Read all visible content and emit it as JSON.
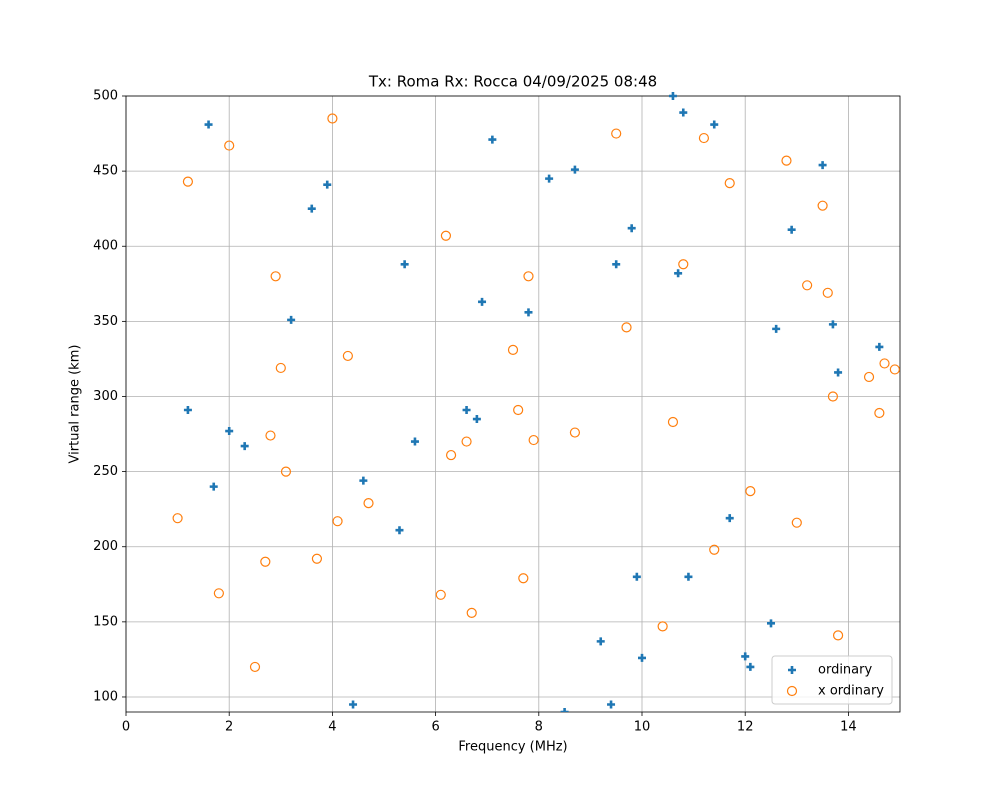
{
  "chart_data": {
    "type": "scatter",
    "title": "Tx: Roma Rx: Rocca 04/09/2025 08:48",
    "x_label": "Frequency (MHz)",
    "y_label": "Virtual range (km)",
    "xlim": [
      0,
      15
    ],
    "ylim": [
      90,
      500
    ],
    "xticks": [
      0,
      2,
      4,
      6,
      8,
      10,
      12,
      14
    ],
    "yticks": [
      100,
      150,
      200,
      250,
      300,
      350,
      400,
      450,
      500
    ],
    "grid": true,
    "legend": "lower right",
    "series": [
      {
        "name": "ordinary",
        "color": "#1f77b4",
        "marker": "plus",
        "x": [
          1.6,
          1.2,
          2.0,
          1.7,
          2.3,
          3.2,
          3.6,
          3.9,
          4.4,
          4.6,
          5.3,
          5.4,
          5.6,
          6.6,
          6.8,
          6.9,
          7.1,
          7.8,
          8.2,
          8.5,
          8.7,
          9.2,
          9.4,
          9.5,
          9.8,
          9.9,
          10.0,
          10.6,
          10.7,
          10.8,
          10.9,
          11.4,
          11.7,
          12.0,
          12.1,
          12.5,
          12.6,
          12.9,
          13.5,
          13.7,
          13.8,
          14.6
        ],
        "values": [
          481,
          291,
          277,
          240,
          267,
          351,
          425,
          441,
          95,
          244,
          211,
          388,
          270,
          291,
          285,
          363,
          471,
          356,
          445,
          90,
          451,
          137,
          95,
          388,
          412,
          180,
          126,
          500,
          382,
          489,
          180,
          481,
          219,
          127,
          120,
          149,
          345,
          411,
          454,
          348,
          316,
          333
        ]
      },
      {
        "name": "x ordinary",
        "color": "#ff7f0e",
        "marker": "circle",
        "x": [
          1.0,
          1.2,
          1.8,
          2.0,
          2.5,
          2.7,
          2.8,
          2.9,
          3.0,
          3.1,
          3.7,
          4.0,
          4.1,
          4.3,
          4.7,
          6.1,
          6.2,
          6.3,
          6.6,
          6.7,
          7.5,
          7.6,
          7.7,
          7.8,
          7.9,
          8.7,
          9.5,
          9.7,
          10.4,
          10.6,
          10.8,
          11.2,
          11.4,
          11.7,
          12.1,
          12.8,
          13.0,
          13.2,
          13.5,
          13.6,
          13.7,
          13.8,
          14.4,
          14.6,
          14.7,
          14.9
        ],
        "values": [
          219,
          443,
          169,
          467,
          120,
          190,
          274,
          380,
          319,
          250,
          192,
          485,
          217,
          327,
          229,
          168,
          407,
          261,
          270,
          156,
          331,
          291,
          179,
          380,
          271,
          276,
          475,
          346,
          147,
          283,
          388,
          472,
          198,
          442,
          237,
          457,
          216,
          374,
          427,
          369,
          300,
          141,
          313,
          289,
          322,
          318
        ]
      }
    ]
  }
}
